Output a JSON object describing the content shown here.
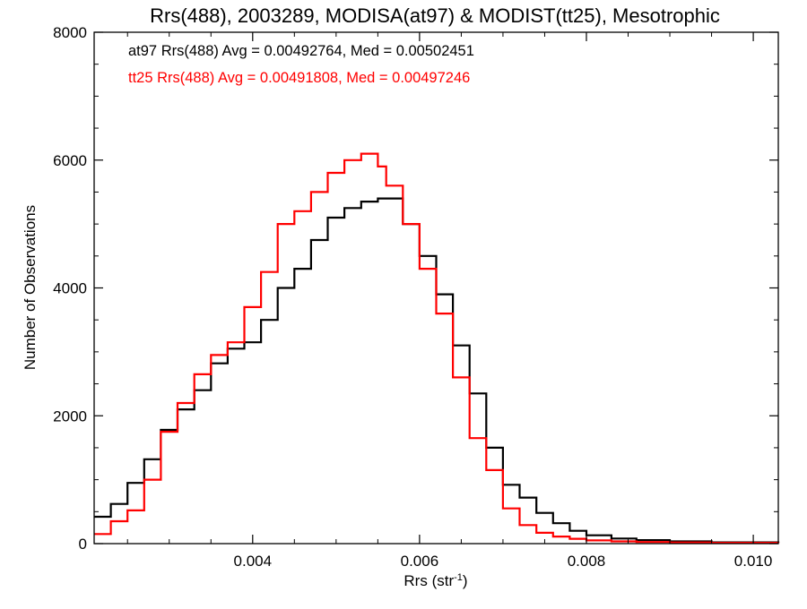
{
  "chart_data": {
    "type": "line",
    "title": "Rrs(488), 2003289, MODISA(at97) & MODIST(tt25), Mesotrophic",
    "xlabel_main": "Rrs (str",
    "xlabel_sup": "-1",
    "xlabel_close": ")",
    "ylabel": "Number of Observations",
    "xlim": [
      0.0021,
      0.0103
    ],
    "ylim": [
      0,
      8000
    ],
    "x_ticks": [
      {
        "value": 0.004,
        "label": "0.004"
      },
      {
        "value": 0.006,
        "label": "0.006"
      },
      {
        "value": 0.008,
        "label": "0.008"
      },
      {
        "value": 0.01,
        "label": "0.010"
      }
    ],
    "y_ticks": [
      {
        "value": 0,
        "label": "0"
      },
      {
        "value": 2000,
        "label": "2000"
      },
      {
        "value": 4000,
        "label": "4000"
      },
      {
        "value": 6000,
        "label": "6000"
      },
      {
        "value": 8000,
        "label": "8000"
      }
    ],
    "annotations": [
      {
        "text": "at97 Rrs(488) Avg = 0.00492764, Med = 0.00502451",
        "color": "#000000"
      },
      {
        "text": "tt25 Rrs(488) Avg = 0.00491808, Med = 0.00497246",
        "color": "#ff0000"
      }
    ],
    "grid": false,
    "step_style": "histogram",
    "series": [
      {
        "color": "#000000",
        "x": [
          0.0021,
          0.0023,
          0.0025,
          0.0027,
          0.0029,
          0.0031,
          0.0033,
          0.0035,
          0.0037,
          0.0039,
          0.0041,
          0.0043,
          0.0045,
          0.0047,
          0.0049,
          0.0051,
          0.0053,
          0.0055,
          0.0056,
          0.0058,
          0.006,
          0.0062,
          0.0064,
          0.0066,
          0.0068,
          0.007,
          0.0072,
          0.0074,
          0.0076,
          0.0078,
          0.008,
          0.0083,
          0.0086,
          0.009,
          0.0095,
          0.0103
        ],
        "y": [
          420,
          620,
          950,
          1320,
          1780,
          2100,
          2400,
          2820,
          3050,
          3150,
          3500,
          4000,
          4300,
          4750,
          5100,
          5250,
          5350,
          5400,
          5400,
          5000,
          4500,
          3900,
          3100,
          2350,
          1500,
          920,
          720,
          480,
          320,
          200,
          130,
          80,
          55,
          35,
          20,
          10
        ]
      },
      {
        "color": "#ff0000",
        "x": [
          0.0021,
          0.0023,
          0.0025,
          0.0027,
          0.0029,
          0.0031,
          0.0033,
          0.0035,
          0.0037,
          0.0039,
          0.0041,
          0.0043,
          0.0045,
          0.0047,
          0.0049,
          0.0051,
          0.0053,
          0.0055,
          0.0056,
          0.0058,
          0.006,
          0.0062,
          0.0064,
          0.0066,
          0.0068,
          0.007,
          0.0072,
          0.0074,
          0.0076,
          0.0078,
          0.008,
          0.0083,
          0.0086,
          0.009,
          0.0095,
          0.0103
        ],
        "y": [
          150,
          350,
          520,
          1000,
          1750,
          2200,
          2650,
          2950,
          3150,
          3700,
          4250,
          5000,
          5200,
          5500,
          5800,
          6000,
          6100,
          5900,
          5600,
          5000,
          4300,
          3600,
          2600,
          1650,
          1150,
          550,
          290,
          170,
          110,
          75,
          50,
          35,
          25,
          18,
          12,
          8
        ]
      }
    ]
  }
}
